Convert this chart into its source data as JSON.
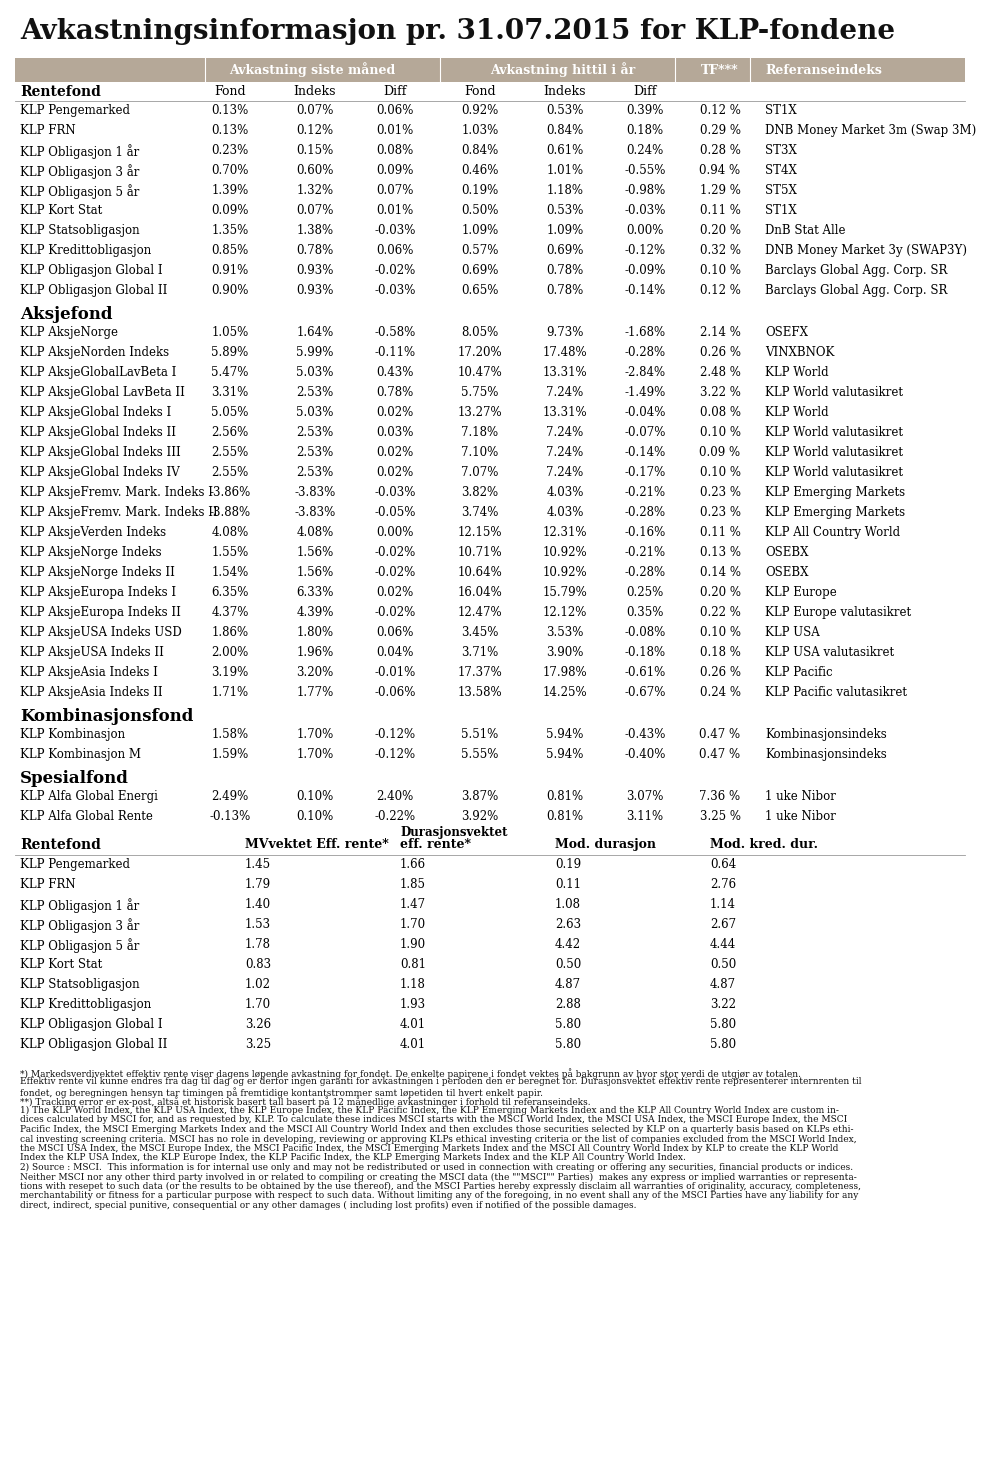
{
  "title": "Avkastningsinformasjon pr. 31.07.2015 for KLP-fondene",
  "header_bg": "#b5a898",
  "rentefond_rows": [
    [
      "KLP Pengemarked",
      "0.13%",
      "0.07%",
      "0.06%",
      "0.92%",
      "0.53%",
      "0.39%",
      "0.12 %",
      "ST1X"
    ],
    [
      "KLP FRN",
      "0.13%",
      "0.12%",
      "0.01%",
      "1.03%",
      "0.84%",
      "0.18%",
      "0.29 %",
      "DNB Money Market 3m (Swap 3M)"
    ],
    [
      "KLP Obligasjon 1 år",
      "0.23%",
      "0.15%",
      "0.08%",
      "0.84%",
      "0.61%",
      "0.24%",
      "0.28 %",
      "ST3X"
    ],
    [
      "KLP Obligasjon 3 år",
      "0.70%",
      "0.60%",
      "0.09%",
      "0.46%",
      "1.01%",
      "-0.55%",
      "0.94 %",
      "ST4X"
    ],
    [
      "KLP Obligasjon 5 år",
      "1.39%",
      "1.32%",
      "0.07%",
      "0.19%",
      "1.18%",
      "-0.98%",
      "1.29 %",
      "ST5X"
    ],
    [
      "KLP Kort Stat",
      "0.09%",
      "0.07%",
      "0.01%",
      "0.50%",
      "0.53%",
      "-0.03%",
      "0.11 %",
      "ST1X"
    ],
    [
      "KLP Statsobligasjon",
      "1.35%",
      "1.38%",
      "-0.03%",
      "1.09%",
      "1.09%",
      "0.00%",
      "0.20 %",
      "DnB Stat Alle"
    ],
    [
      "KLP Kredittobligasjon",
      "0.85%",
      "0.78%",
      "0.06%",
      "0.57%",
      "0.69%",
      "-0.12%",
      "0.32 %",
      "DNB Money Market 3y (SWAP3Y)"
    ],
    [
      "KLP Obligasjon Global I",
      "0.91%",
      "0.93%",
      "-0.02%",
      "0.69%",
      "0.78%",
      "-0.09%",
      "0.10 %",
      "Barclays Global Agg. Corp. SR"
    ],
    [
      "KLP Obligasjon Global II",
      "0.90%",
      "0.93%",
      "-0.03%",
      "0.65%",
      "0.78%",
      "-0.14%",
      "0.12 %",
      "Barclays Global Agg. Corp. SR"
    ]
  ],
  "aksjefond_rows": [
    [
      "KLP AksjeNorge",
      "1.05%",
      "1.64%",
      "-0.58%",
      "8.05%",
      "9.73%",
      "-1.68%",
      "2.14 %",
      "OSEFX"
    ],
    [
      "KLP AksjeNorden Indeks",
      "5.89%",
      "5.99%",
      "-0.11%",
      "17.20%",
      "17.48%",
      "-0.28%",
      "0.26 %",
      "VINXBNOK"
    ],
    [
      "KLP AksjeGlobalLavBeta I",
      "5.47%",
      "5.03%",
      "0.43%",
      "10.47%",
      "13.31%",
      "-2.84%",
      "2.48 %",
      "KLP World"
    ],
    [
      "KLP AksjeGlobal LavBeta II",
      "3.31%",
      "2.53%",
      "0.78%",
      "5.75%",
      "7.24%",
      "-1.49%",
      "3.22 %",
      "KLP World valutasikret"
    ],
    [
      "KLP AksjeGlobal Indeks I",
      "5.05%",
      "5.03%",
      "0.02%",
      "13.27%",
      "13.31%",
      "-0.04%",
      "0.08 %",
      "KLP World"
    ],
    [
      "KLP AksjeGlobal Indeks II",
      "2.56%",
      "2.53%",
      "0.03%",
      "7.18%",
      "7.24%",
      "-0.07%",
      "0.10 %",
      "KLP World valutasikret"
    ],
    [
      "KLP AksjeGlobal Indeks III",
      "2.55%",
      "2.53%",
      "0.02%",
      "7.10%",
      "7.24%",
      "-0.14%",
      "0.09 %",
      "KLP World valutasikret"
    ],
    [
      "KLP AksjeGlobal Indeks IV",
      "2.55%",
      "2.53%",
      "0.02%",
      "7.07%",
      "7.24%",
      "-0.17%",
      "0.10 %",
      "KLP World valutasikret"
    ],
    [
      "KLP AksjeFremv. Mark. Indeks I",
      "-3.86%",
      "-3.83%",
      "-0.03%",
      "3.82%",
      "4.03%",
      "-0.21%",
      "0.23 %",
      "KLP Emerging Markets"
    ],
    [
      "KLP AksjeFremv. Mark. Indeks II",
      "-3.88%",
      "-3.83%",
      "-0.05%",
      "3.74%",
      "4.03%",
      "-0.28%",
      "0.23 %",
      "KLP Emerging Markets"
    ],
    [
      "KLP AksjeVerden Indeks",
      "4.08%",
      "4.08%",
      "0.00%",
      "12.15%",
      "12.31%",
      "-0.16%",
      "0.11 %",
      "KLP All Country World"
    ],
    [
      "KLP AksjeNorge Indeks",
      "1.55%",
      "1.56%",
      "-0.02%",
      "10.71%",
      "10.92%",
      "-0.21%",
      "0.13 %",
      "OSEBX"
    ],
    [
      "KLP AksjeNorge Indeks II",
      "1.54%",
      "1.56%",
      "-0.02%",
      "10.64%",
      "10.92%",
      "-0.28%",
      "0.14 %",
      "OSEBX"
    ],
    [
      "KLP AksjeEuropa Indeks I",
      "6.35%",
      "6.33%",
      "0.02%",
      "16.04%",
      "15.79%",
      "0.25%",
      "0.20 %",
      "KLP Europe"
    ],
    [
      "KLP AksjeEuropa Indeks II",
      "4.37%",
      "4.39%",
      "-0.02%",
      "12.47%",
      "12.12%",
      "0.35%",
      "0.22 %",
      "KLP Europe valutasikret"
    ],
    [
      "KLP AksjeUSA Indeks USD",
      "1.86%",
      "1.80%",
      "0.06%",
      "3.45%",
      "3.53%",
      "-0.08%",
      "0.10 %",
      "KLP USA"
    ],
    [
      "KLP AksjeUSA Indeks II",
      "2.00%",
      "1.96%",
      "0.04%",
      "3.71%",
      "3.90%",
      "-0.18%",
      "0.18 %",
      "KLP USA valutasikret"
    ],
    [
      "KLP AksjeAsia Indeks I",
      "3.19%",
      "3.20%",
      "-0.01%",
      "17.37%",
      "17.98%",
      "-0.61%",
      "0.26 %",
      "KLP Pacific"
    ],
    [
      "KLP AksjeAsia Indeks II",
      "1.71%",
      "1.77%",
      "-0.06%",
      "13.58%",
      "14.25%",
      "-0.67%",
      "0.24 %",
      "KLP Pacific valutasikret"
    ]
  ],
  "kombinasjonsfond_rows": [
    [
      "KLP Kombinasjon",
      "1.58%",
      "1.70%",
      "-0.12%",
      "5.51%",
      "5.94%",
      "-0.43%",
      "0.47 %",
      "Kombinasjonsindeks"
    ],
    [
      "KLP Kombinasjon M",
      "1.59%",
      "1.70%",
      "-0.12%",
      "5.55%",
      "5.94%",
      "-0.40%",
      "0.47 %",
      "Kombinasjonsindeks"
    ]
  ],
  "spesialfond_rows": [
    [
      "KLP Alfa Global Energi",
      "2.49%",
      "0.10%",
      "2.40%",
      "3.87%",
      "0.81%",
      "3.07%",
      "7.36 %",
      "1 uke Nibor"
    ],
    [
      "KLP Alfa Global Rente",
      "-0.13%",
      "0.10%",
      "-0.22%",
      "3.92%",
      "0.81%",
      "3.11%",
      "3.25 %",
      "1 uke Nibor"
    ]
  ],
  "duration_rows": [
    [
      "KLP Pengemarked",
      "1.45",
      "1.66",
      "0.19",
      "0.64"
    ],
    [
      "KLP FRN",
      "1.79",
      "1.85",
      "0.11",
      "2.76"
    ],
    [
      "KLP Obligasjon 1 år",
      "1.40",
      "1.47",
      "1.08",
      "1.14"
    ],
    [
      "KLP Obligasjon 3 år",
      "1.53",
      "1.70",
      "2.63",
      "2.67"
    ],
    [
      "KLP Obligasjon 5 år",
      "1.78",
      "1.90",
      "4.42",
      "4.44"
    ],
    [
      "KLP Kort Stat",
      "0.83",
      "0.81",
      "0.50",
      "0.50"
    ],
    [
      "KLP Statsobligasjon",
      "1.02",
      "1.18",
      "4.87",
      "4.87"
    ],
    [
      "KLP Kredittobligasjon",
      "1.70",
      "1.93",
      "2.88",
      "3.22"
    ],
    [
      "KLP Obligasjon Global I",
      "3.26",
      "4.01",
      "5.80",
      "5.80"
    ],
    [
      "KLP Obligasjon Global II",
      "3.25",
      "4.01",
      "5.80",
      "5.80"
    ]
  ],
  "footnote_lines": [
    "*) Markedsverdivektet effektiv rente viser dagens løpende avkastning for fondet. De enkelte papirene i fondet vektes på bakgrunn av hvor stor verdi de utgjør av totalen.",
    "Effektiv rente vil kunne endres fra dag til dag og er derfor ingen garanti for avkastningen i perioden den er beregnet for. Durasjonsvektet effektiv rente representerer internrenten til",
    "fondet, og beregningen hensyn tar timingen på fremtidige kontantstrommer samt løpetiden til hvert enkelt papir.",
    "**) Tracking error er ex-post, altså et historisk basert tall basert på 12 månedlige avkastninger i forhold til referanseindeks.",
    "1) The KLP World Index, the KLP USA Index, the KLP Europe Index, the KLP Pacific Index, the KLP Emerging Markets Index and the KLP All Country World Index are custom in-",
    "dices calculated by MSCI for, and as requested by, KLP. To calculate these indices MSCI starts with the MSCI World Index, the MSCI USA Index, the MSCI Europe Index, the MSCI",
    "Pacific Index, the MSCI Emerging Markets Index and the MSCI All Country World Index and then excludes those securities selected by KLP on a quarterly basis based on KLPs ethi-",
    "cal investing screening criteria. MSCI has no role in developing, reviewing or approving KLPs ethical investing criteria or the list of companies excluded from the MSCI World Index,",
    "the MSCI USA Index, the MSCI Europe Index, the MSCI Pacific Index, the MSCI Emerging Markets Index and the MSCI All Country World Index by KLP to create the KLP World",
    "Index the KLP USA Index, the KLP Europe Index, the KLP Pacific Index, the KLP Emerging Markets Index and the KLP All Country World Index.",
    "2) Source : MSCI.  This information is for internal use only and may not be redistributed or used in connection with creating or offering any securities, financial products or indices.",
    "Neither MSCI nor any other third party involved in or related to compiling or creating the MSCI data (the \"\"MSCI\"\" Parties)  makes any express or implied warranties or representa-",
    "tions with resepet to such data (or the results to be obtained by the use thereof), and the MSCI Parties hereby expressly disclaim all warranties of originality, accuracy, completeness,",
    "merchantability or fitness for a particular purpose with respect to such data. Without limiting any of the foregoing, in no event shall any of the MSCI Parties have any liability for any",
    "direct, indirect, special punitive, consequential or any other damages ( including lost profits) even if notified of the possible damages."
  ]
}
